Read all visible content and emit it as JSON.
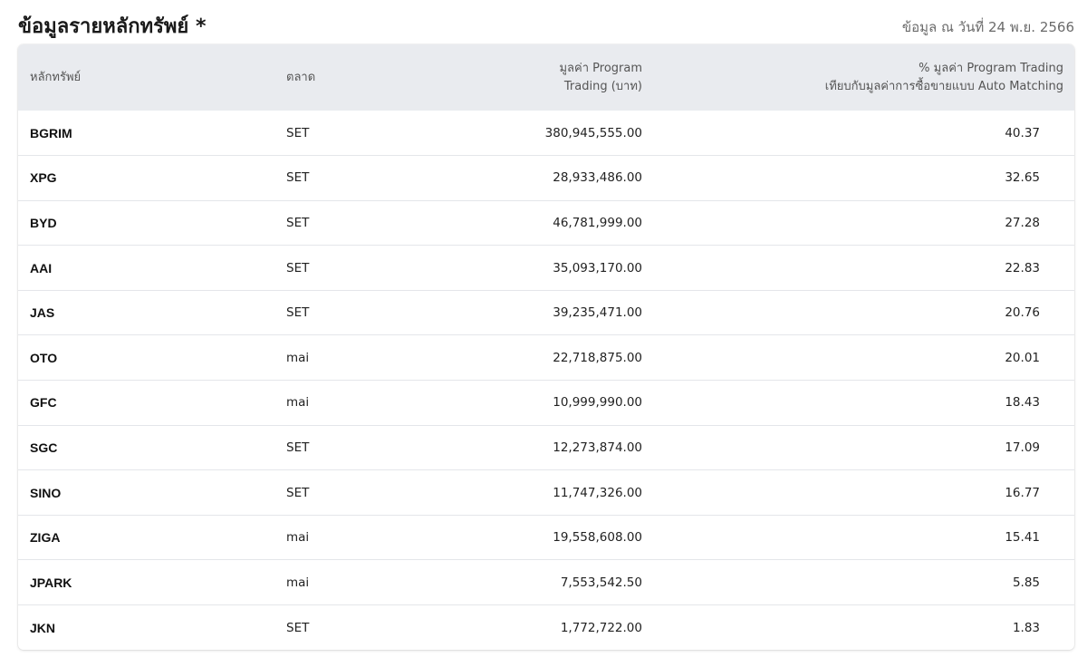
{
  "header": {
    "title": "ข้อมูลรายหลักทรัพย์ *",
    "as_of": "ข้อมูล ณ วันที่ 24 พ.ย. 2566"
  },
  "table": {
    "columns": {
      "symbol": "หลักทรัพย์",
      "market": "ตลาด",
      "value_line1": "มูลค่า Program",
      "value_line2": "Trading (บาท)",
      "pct_line1": "% มูลค่า Program Trading",
      "pct_line2": "เทียบกับมูลค่าการซื้อขายแบบ Auto Matching"
    },
    "rows": [
      {
        "symbol": "BGRIM",
        "market": "SET",
        "value": "380,945,555.00",
        "pct": "40.37"
      },
      {
        "symbol": "XPG",
        "market": "SET",
        "value": "28,933,486.00",
        "pct": "32.65"
      },
      {
        "symbol": "BYD",
        "market": "SET",
        "value": "46,781,999.00",
        "pct": "27.28"
      },
      {
        "symbol": "AAI",
        "market": "SET",
        "value": "35,093,170.00",
        "pct": "22.83"
      },
      {
        "symbol": "JAS",
        "market": "SET",
        "value": "39,235,471.00",
        "pct": "20.76"
      },
      {
        "symbol": "OTO",
        "market": "mai",
        "value": "22,718,875.00",
        "pct": "20.01"
      },
      {
        "symbol": "GFC",
        "market": "mai",
        "value": "10,999,990.00",
        "pct": "18.43"
      },
      {
        "symbol": "SGC",
        "market": "SET",
        "value": "12,273,874.00",
        "pct": "17.09"
      },
      {
        "symbol": "SINO",
        "market": "SET",
        "value": "11,747,326.00",
        "pct": "16.77"
      },
      {
        "symbol": "ZIGA",
        "market": "mai",
        "value": "19,558,608.00",
        "pct": "15.41"
      },
      {
        "symbol": "JPARK",
        "market": "mai",
        "value": "7,553,542.50",
        "pct": "5.85"
      },
      {
        "symbol": "JKN",
        "market": "SET",
        "value": "1,772,722.00",
        "pct": "1.83"
      }
    ]
  }
}
